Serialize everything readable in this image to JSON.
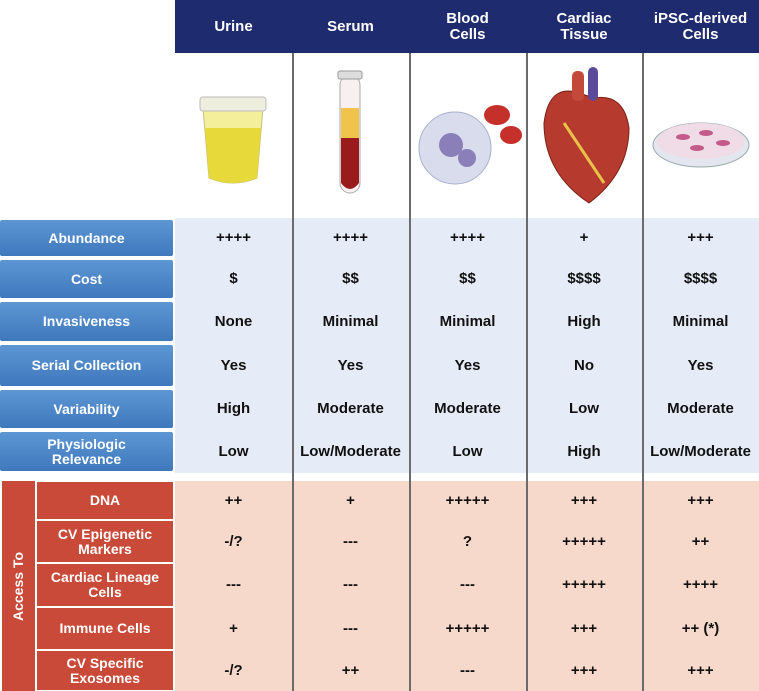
{
  "header": {
    "columns": [
      "Urine",
      "Serum",
      "Blood Cells",
      "Cardiac Tissue",
      "iPSC-derived Cells"
    ]
  },
  "properties": [
    {
      "label": "Abundance",
      "values": [
        "++++",
        "++++",
        "++++",
        "+",
        "+++"
      ]
    },
    {
      "label": "Cost",
      "values": [
        "$",
        "$$",
        "$$",
        "$$$$",
        "$$$$"
      ]
    },
    {
      "label": "Invasiveness",
      "values": [
        "None",
        "Minimal",
        "Minimal",
        "High",
        "Minimal"
      ]
    },
    {
      "label": "Serial Collection",
      "values": [
        "Yes",
        "Yes",
        "Yes",
        "No",
        "Yes"
      ]
    },
    {
      "label": "Variability",
      "values": [
        "High",
        "Moderate",
        "Moderate",
        "Low",
        "Moderate"
      ]
    },
    {
      "label": "Physiologic Relevance",
      "values": [
        "Low",
        "Low/Moderate",
        "Low",
        "High",
        "Low/Moderate"
      ]
    }
  ],
  "access": {
    "title": "Access To",
    "rows": [
      {
        "label": "DNA",
        "values": [
          "++",
          "+",
          "+++++",
          "+++",
          "+++"
        ]
      },
      {
        "label": "CV Epigenetic Markers",
        "values": [
          "-/?",
          "---",
          "?",
          "+++++",
          "++"
        ]
      },
      {
        "label": "Cardiac Lineage Cells",
        "values": [
          "---",
          "---",
          "---",
          "+++++",
          "++++"
        ]
      },
      {
        "label": "Immune Cells",
        "values": [
          "+",
          "---",
          "+++++",
          "+++",
          "++ (*)"
        ]
      },
      {
        "label": "CV Specific Exosomes",
        "values": [
          "-/?",
          "++",
          "---",
          "+++",
          "+++"
        ]
      }
    ]
  }
}
